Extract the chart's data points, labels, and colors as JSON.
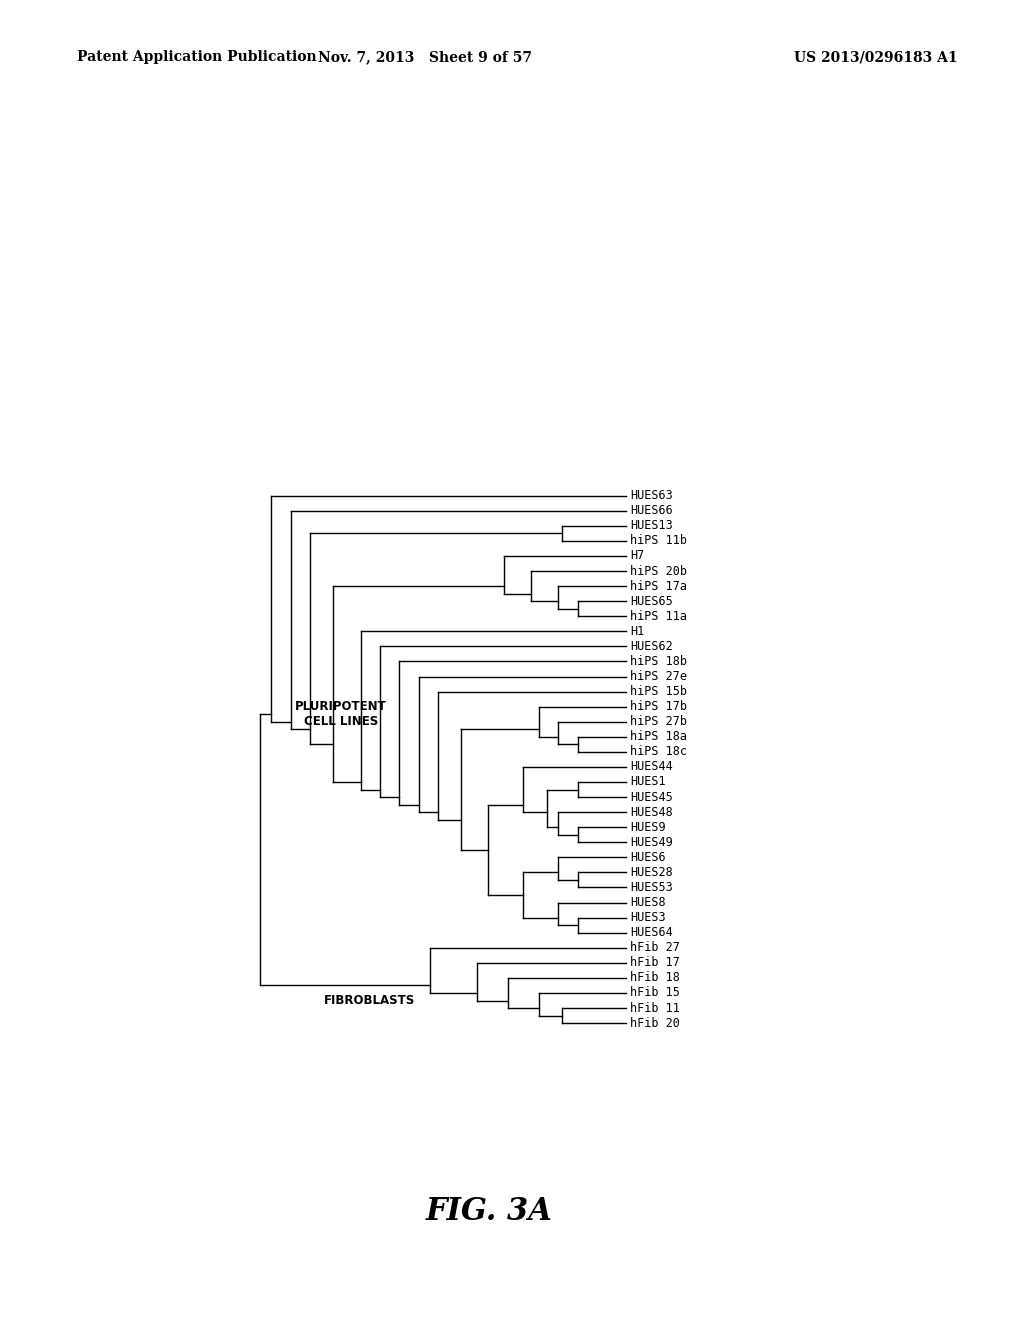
{
  "header_left": "Patent Application Publication",
  "header_mid": "Nov. 7, 2013   Sheet 9 of 57",
  "header_right": "US 2013/0296183 A1",
  "figure_label": "FIG. 3A",
  "label_fibroblasts": "FIBROBLASTS",
  "label_pluripotent": "PLURIPOTENT\nCELL LINES",
  "leaves": [
    "hFib 20",
    "hFib 11",
    "hFib 15",
    "hFib 18",
    "hFib 17",
    "hFib 27",
    "HUES64",
    "HUES3",
    "HUES8",
    "HUES53",
    "HUES28",
    "HUES6",
    "HUES49",
    "HUES9",
    "HUES48",
    "HUES45",
    "HUES1",
    "HUES44",
    "hiPS 18c",
    "hiPS 18a",
    "hiPS 27b",
    "hiPS 17b",
    "hiPS 15b",
    "hiPS 27e",
    "hiPS 18b",
    "HUES62",
    "H1",
    "hiPS 11a",
    "HUES65",
    "hiPS 17a",
    "hiPS 20b",
    "H7",
    "hiPS 11b",
    "HUES13",
    "HUES66",
    "HUES63"
  ],
  "background_color": "#ffffff",
  "line_color": "#000000",
  "text_color": "#000000",
  "header_fontsize": 10,
  "leaf_fontsize": 8.5,
  "label_fontsize": 8.5,
  "fig_label_fontsize": 22
}
